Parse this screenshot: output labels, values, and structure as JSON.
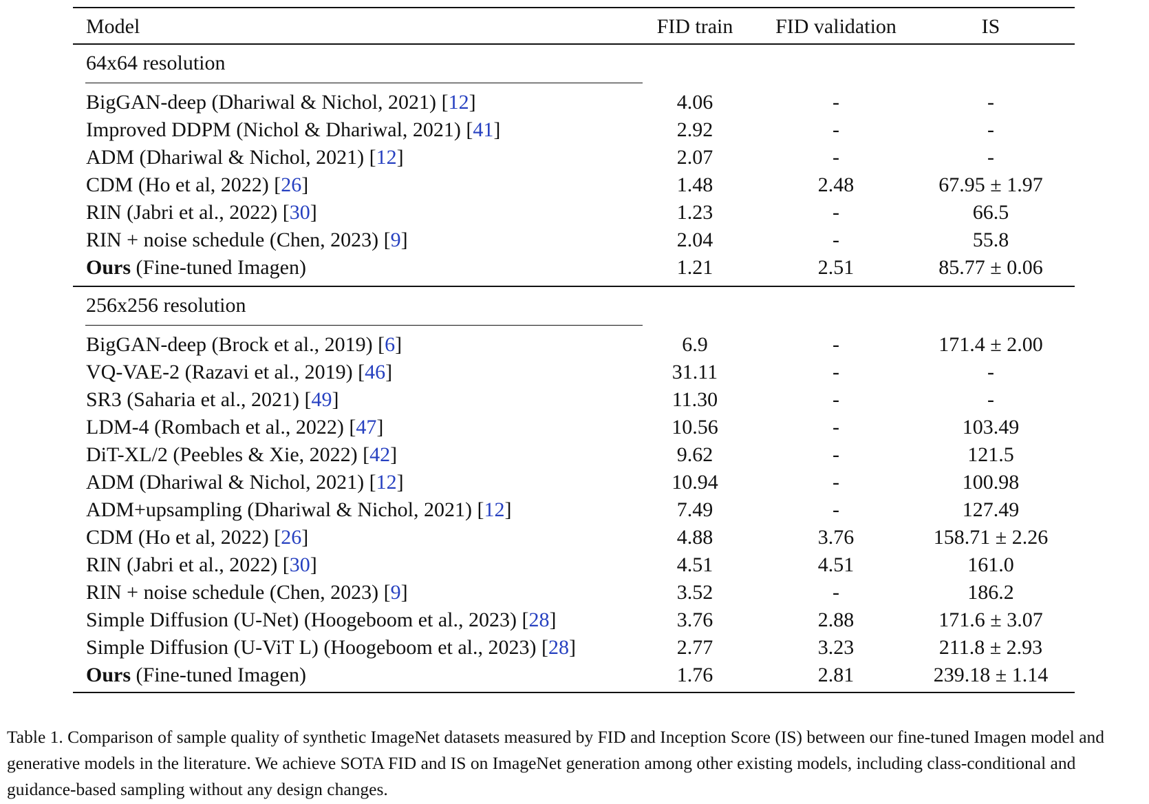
{
  "table": {
    "headers": {
      "model": "Model",
      "fid_train": "FID train",
      "fid_validation": "FID validation",
      "is": "IS"
    },
    "sections": [
      {
        "label": "64x64 resolution",
        "rows": [
          {
            "bold": "",
            "name": "BigGAN-deep (Dhariwal & Nichol, 2021)",
            "cite": "12",
            "fid_train": "4.06",
            "fid_val": "-",
            "is": "-"
          },
          {
            "bold": "",
            "name": "Improved DDPM (Nichol & Dhariwal, 2021)",
            "cite": "41",
            "fid_train": "2.92",
            "fid_val": "-",
            "is": "-"
          },
          {
            "bold": "",
            "name": "ADM (Dhariwal & Nichol, 2021)",
            "cite": "12",
            "fid_train": "2.07",
            "fid_val": "-",
            "is": "-"
          },
          {
            "bold": "",
            "name": "CDM (Ho et al, 2022)",
            "cite": "26",
            "fid_train": "1.48",
            "fid_val": "2.48",
            "is": "67.95 ± 1.97"
          },
          {
            "bold": "",
            "name": "RIN (Jabri et al., 2022)",
            "cite": "30",
            "fid_train": "1.23",
            "fid_val": "-",
            "is": "66.5"
          },
          {
            "bold": "",
            "name": "RIN + noise schedule (Chen, 2023)",
            "cite": "9",
            "fid_train": "2.04",
            "fid_val": "-",
            "is": "55.8"
          },
          {
            "bold": "Ours",
            "name": " (Fine-tuned Imagen)",
            "cite": "",
            "fid_train": "1.21",
            "fid_val": "2.51",
            "is": "85.77 ± 0.06"
          }
        ]
      },
      {
        "label": "256x256 resolution",
        "rows": [
          {
            "bold": "",
            "name": "BigGAN-deep (Brock et al., 2019)",
            "cite": "6",
            "fid_train": "6.9",
            "fid_val": "-",
            "is": "171.4 ± 2.00"
          },
          {
            "bold": "",
            "name": "VQ-VAE-2 (Razavi et al., 2019)",
            "cite": "46",
            "fid_train": "31.11",
            "fid_val": "-",
            "is": "-"
          },
          {
            "bold": "",
            "name": "SR3 (Saharia et al., 2021)",
            "cite": "49",
            "fid_train": "11.30",
            "fid_val": "-",
            "is": "-"
          },
          {
            "bold": "",
            "name": "LDM-4 (Rombach et al., 2022)",
            "cite": "47",
            "fid_train": "10.56",
            "fid_val": "-",
            "is": "103.49"
          },
          {
            "bold": "",
            "name": "DiT-XL/2 (Peebles & Xie, 2022)",
            "cite": "42",
            "fid_train": "9.62",
            "fid_val": "-",
            "is": "121.5"
          },
          {
            "bold": "",
            "name": "ADM (Dhariwal & Nichol, 2021)",
            "cite": "12",
            "fid_train": "10.94",
            "fid_val": "-",
            "is": "100.98"
          },
          {
            "bold": "",
            "name": "ADM+upsampling (Dhariwal & Nichol, 2021)",
            "cite": "12",
            "fid_train": "7.49",
            "fid_val": "-",
            "is": "127.49"
          },
          {
            "bold": "",
            "name": "CDM (Ho et al, 2022)",
            "cite": "26",
            "fid_train": "4.88",
            "fid_val": "3.76",
            "is": "158.71 ± 2.26"
          },
          {
            "bold": "",
            "name": "RIN (Jabri et al., 2022)",
            "cite": "30",
            "fid_train": "4.51",
            "fid_val": "4.51",
            "is": "161.0"
          },
          {
            "bold": "",
            "name": "RIN + noise schedule (Chen, 2023)",
            "cite": "9",
            "fid_train": "3.52",
            "fid_val": "-",
            "is": "186.2"
          },
          {
            "bold": "",
            "name": "Simple Diffusion (U-Net) (Hoogeboom et al., 2023)",
            "cite": "28",
            "fid_train": "3.76",
            "fid_val": "2.88",
            "is": "171.6 ± 3.07"
          },
          {
            "bold": "",
            "name": "Simple Diffusion (U-ViT L) (Hoogeboom et al., 2023)",
            "cite": "28",
            "fid_train": "2.77",
            "fid_val": "3.23",
            "is": "211.8 ± 2.93"
          },
          {
            "bold": "Ours",
            "name": " (Fine-tuned Imagen)",
            "cite": "",
            "fid_train": "1.76",
            "fid_val": "2.81",
            "is": "239.18 ± 1.14"
          }
        ]
      }
    ]
  },
  "caption": "Table 1. Comparison of sample quality of synthetic ImageNet datasets measured by FID and Inception Score (IS) between our fine-tuned Imagen model and generative models in the literature. We achieve SOTA FID and IS on ImageNet generation among other existing models, including class-conditional and guidance-based sampling without any design changes."
}
